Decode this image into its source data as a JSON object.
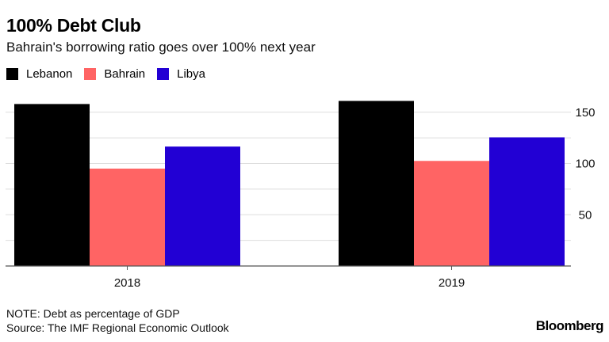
{
  "header": {
    "title": "100% Debt Club",
    "subtitle": "Bahrain's borrowing ratio goes over 100% next year"
  },
  "legend": [
    {
      "label": "Lebanon",
      "color": "#000000"
    },
    {
      "label": "Bahrain",
      "color": "#ff6464"
    },
    {
      "label": "Libya",
      "color": "#2200d4"
    }
  ],
  "footer": {
    "note": "NOTE: Debt as percentage of GDP",
    "source": "Source: The IMF Regional Economic Outlook",
    "brand": "Bloomberg"
  },
  "chart_data": {
    "type": "bar",
    "title": "100% Debt Club",
    "subtitle": "Bahrain's borrowing ratio goes over 100% next year",
    "xlabel": "",
    "ylabel": "Debt as percentage of GDP",
    "categories": [
      "2018",
      "2019"
    ],
    "series": [
      {
        "name": "Lebanon",
        "color": "#000000",
        "values": [
          158,
          161
        ]
      },
      {
        "name": "Bahrain",
        "color": "#ff6464",
        "values": [
          95,
          102.5
        ]
      },
      {
        "name": "Libya",
        "color": "#2200d4",
        "values": [
          116.5,
          125.5
        ]
      }
    ],
    "ylim": [
      0,
      160
    ],
    "yticks": [
      50,
      100,
      150
    ],
    "ytick_labels": [
      "50",
      "100",
      "150"
    ],
    "minor_gridlines": [
      25,
      75,
      125
    ],
    "grid": true,
    "y_axis_position": "right",
    "legend_position": "top-left"
  }
}
